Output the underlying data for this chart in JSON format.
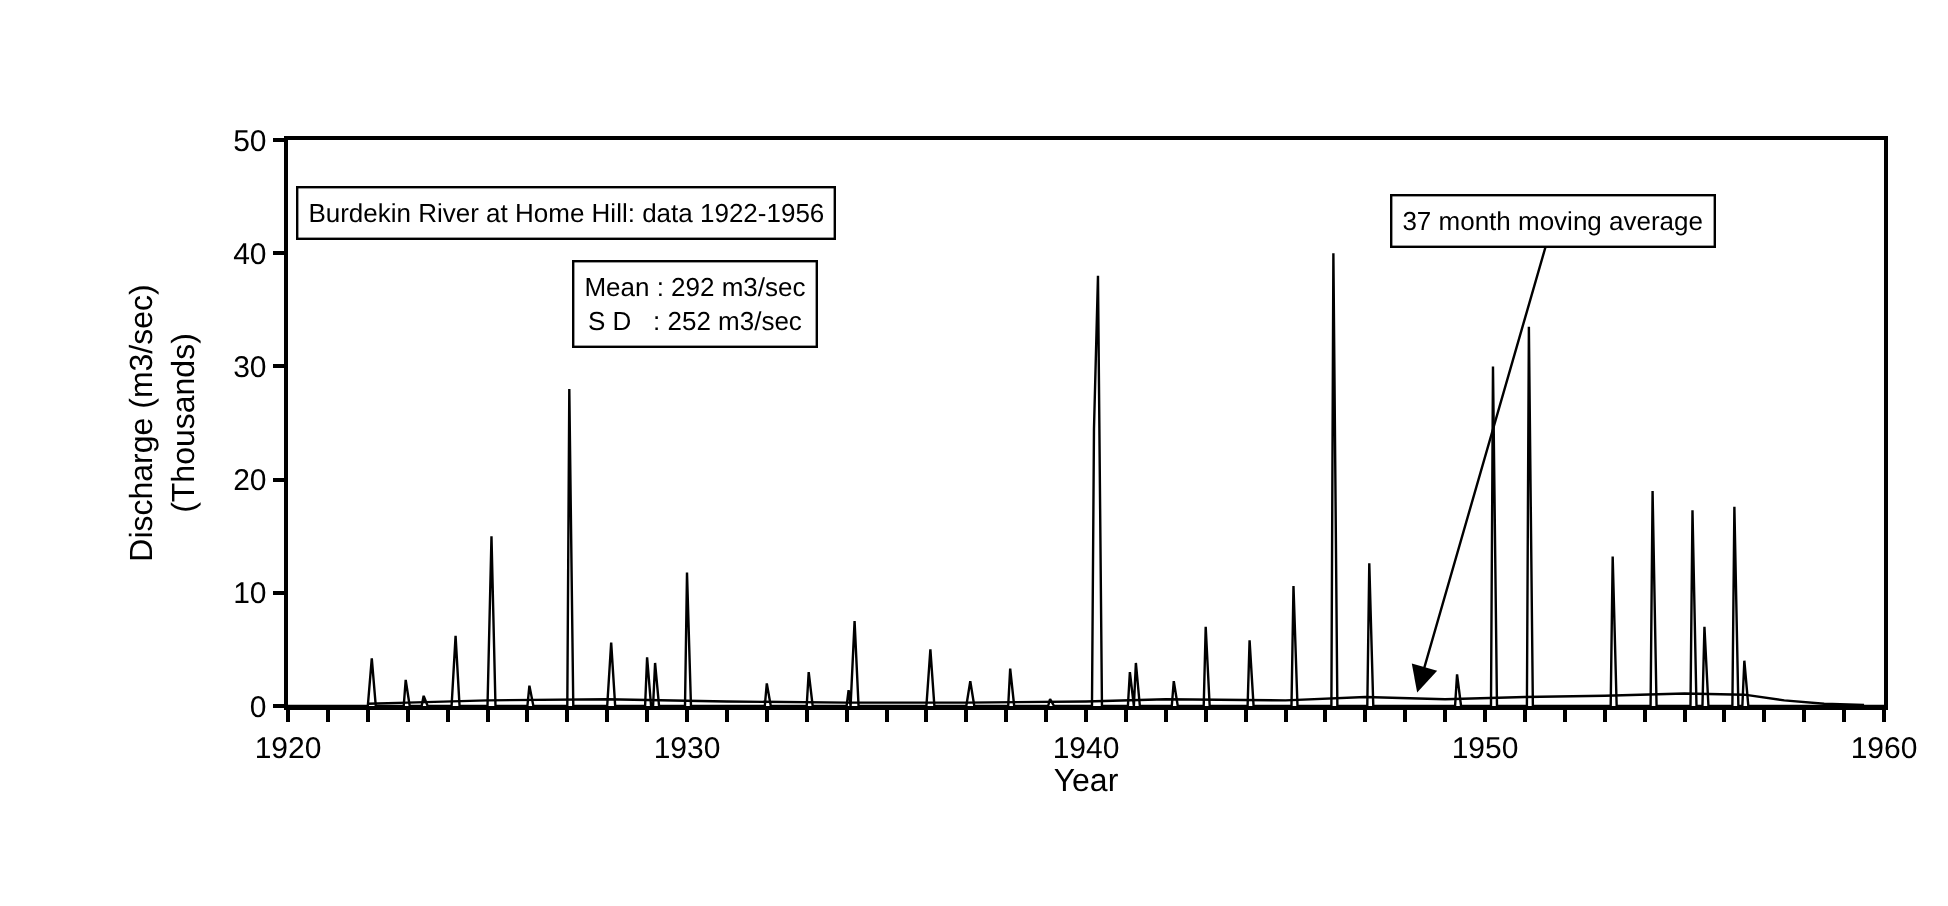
{
  "chart_data": {
    "type": "line",
    "xlabel": "Year",
    "ylabel": "Discharge (m3/sec)\n(Thousands)",
    "xlim": [
      1920,
      1960
    ],
    "ylim": [
      0,
      50
    ],
    "xticks": [
      1920,
      {
        "value": 1921,
        "label": null
      },
      {
        "value": 1922,
        "label": null
      },
      {
        "value": 1923,
        "label": null
      },
      {
        "value": 1924,
        "label": null
      },
      {
        "value": 1925,
        "label": null
      },
      {
        "value": 1926,
        "label": null
      },
      {
        "value": 1927,
        "label": null
      },
      {
        "value": 1928,
        "label": null
      },
      {
        "value": 1929,
        "label": null
      },
      1930,
      {
        "value": 1931,
        "label": null
      },
      {
        "value": 1932,
        "label": null
      },
      {
        "value": 1933,
        "label": null
      },
      {
        "value": 1934,
        "label": null
      },
      {
        "value": 1935,
        "label": null
      },
      {
        "value": 1936,
        "label": null
      },
      {
        "value": 1937,
        "label": null
      },
      {
        "value": 1938,
        "label": null
      },
      {
        "value": 1939,
        "label": null
      },
      1940,
      {
        "value": 1941,
        "label": null
      },
      {
        "value": 1942,
        "label": null
      },
      {
        "value": 1943,
        "label": null
      },
      {
        "value": 1944,
        "label": null
      },
      {
        "value": 1945,
        "label": null
      },
      {
        "value": 1946,
        "label": null
      },
      {
        "value": 1947,
        "label": null
      },
      {
        "value": 1948,
        "label": null
      },
      {
        "value": 1949,
        "label": null
      },
      1950,
      {
        "value": 1951,
        "label": null
      },
      {
        "value": 1952,
        "label": null
      },
      {
        "value": 1953,
        "label": null
      },
      {
        "value": 1954,
        "label": null
      },
      {
        "value": 1955,
        "label": null
      },
      {
        "value": 1956,
        "label": null
      },
      {
        "value": 1957,
        "label": null
      },
      {
        "value": 1958,
        "label": null
      },
      {
        "value": 1959,
        "label": null
      },
      1960
    ],
    "yticks": [
      0,
      10,
      20,
      30,
      40,
      50
    ],
    "marker": "none",
    "line_style": "solid",
    "series": [
      {
        "color": "#000000",
        "x": [
          1920.0,
          1922.0,
          1922.1,
          1922.2,
          1922.9,
          1922.95,
          1923.05,
          1923.35,
          1923.4,
          1923.5,
          1924.1,
          1924.2,
          1924.3,
          1925.0,
          1925.1,
          1925.2,
          1926.0,
          1926.05,
          1926.15,
          1927.0,
          1927.05,
          1927.15,
          1928.0,
          1928.1,
          1928.2,
          1928.95,
          1929.0,
          1929.1,
          1929.15,
          1929.2,
          1929.3,
          1929.95,
          1930.0,
          1930.1,
          1931.95,
          1932.0,
          1932.1,
          1933.0,
          1933.05,
          1933.15,
          1934.0,
          1934.05,
          1934.1,
          1934.2,
          1934.3,
          1936.0,
          1936.1,
          1936.2,
          1937.0,
          1937.1,
          1937.2,
          1938.05,
          1938.1,
          1938.2,
          1939.05,
          1939.1,
          1939.2,
          1940.15,
          1940.2,
          1940.3,
          1940.4,
          1941.05,
          1941.1,
          1941.2,
          1941.25,
          1941.35,
          1942.15,
          1942.2,
          1942.3,
          1942.95,
          1943.0,
          1943.1,
          1944.05,
          1944.1,
          1944.2,
          1945.15,
          1945.2,
          1945.3,
          1946.15,
          1946.2,
          1946.3,
          1947.05,
          1947.1,
          1947.2,
          1949.25,
          1949.3,
          1949.4,
          1950.15,
          1950.2,
          1950.3,
          1951.05,
          1951.1,
          1951.2,
          1953.15,
          1953.2,
          1953.3,
          1954.15,
          1954.2,
          1954.3,
          1955.15,
          1955.2,
          1955.3,
          1955.45,
          1955.5,
          1955.6,
          1956.2,
          1956.25,
          1956.35,
          1956.45,
          1956.5,
          1956.6,
          1960.0
        ],
        "values": [
          0,
          0,
          4.2,
          0,
          0,
          2.3,
          0,
          0,
          0.9,
          0,
          0,
          6.2,
          0,
          0,
          15,
          0,
          0,
          1.8,
          0,
          0,
          28,
          0,
          0,
          5.6,
          0,
          0,
          4.3,
          0,
          0,
          3.8,
          0,
          0,
          11.8,
          0,
          0,
          2,
          0,
          0,
          3,
          0,
          0,
          1.4,
          0,
          7.5,
          0,
          0,
          5,
          0,
          0,
          2.2,
          0,
          0,
          3.3,
          0,
          0,
          0.6,
          0,
          0,
          24.5,
          38,
          0,
          0,
          3,
          0,
          3.8,
          0,
          0,
          2.2,
          0,
          0,
          7,
          0,
          0,
          5.8,
          0,
          0,
          10.6,
          0,
          0,
          40,
          0,
          0,
          12.6,
          0,
          0,
          2.8,
          0,
          0,
          30,
          0,
          0,
          33.5,
          0,
          0,
          13.2,
          0,
          0,
          19,
          0,
          0,
          17.3,
          0,
          0,
          7,
          0,
          0,
          17.6,
          0,
          0,
          4,
          0,
          0
        ]
      },
      {
        "color": "#000000",
        "x": [
          1922,
          1923,
          1925,
          1928,
          1931,
          1934,
          1937,
          1940,
          1942,
          1945,
          1947,
          1949,
          1951,
          1953,
          1955,
          1956.5,
          1957.5,
          1958.5,
          1959.5
        ],
        "values": [
          0.2,
          0.3,
          0.5,
          0.6,
          0.4,
          0.3,
          0.3,
          0.4,
          0.6,
          0.5,
          0.8,
          0.6,
          0.8,
          0.9,
          1.1,
          1.0,
          0.5,
          0.2,
          0.1
        ]
      }
    ],
    "annotations": [
      "Burdekin River at Home Hill: data 1922-1956",
      "Mean : 292 m3/sec\nS D   : 252 m3/sec",
      {
        "text": "37 month moving average",
        "x": 1948.3,
        "y": 1.2
      }
    ]
  }
}
